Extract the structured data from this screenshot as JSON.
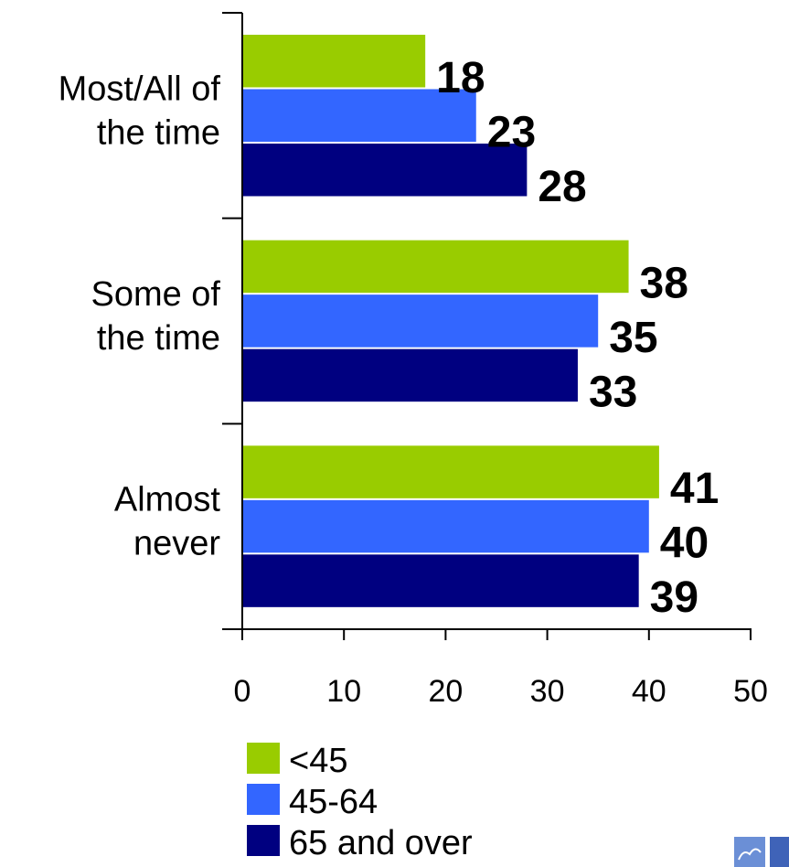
{
  "chart_data": {
    "type": "bar",
    "orientation": "horizontal",
    "categories": [
      "Most/All of the time",
      "Some of the time",
      "Almost never"
    ],
    "category_lines": [
      [
        "Most/All of",
        "the time"
      ],
      [
        "Some of",
        "the time"
      ],
      [
        "Almost",
        "never"
      ]
    ],
    "series": [
      {
        "name": "<45",
        "color": "#99cc00",
        "values": [
          18,
          38,
          41
        ]
      },
      {
        "name": "45-64",
        "color": "#3366ff",
        "values": [
          23,
          35,
          40
        ]
      },
      {
        "name": "65 and over",
        "color": "#000080",
        "values": [
          28,
          33,
          39
        ]
      }
    ],
    "xlim": [
      0,
      50
    ],
    "xticks": [
      "0",
      "10",
      "20",
      "30",
      "40",
      "50"
    ],
    "grid": false,
    "legend_position": "bottom",
    "data_labels": true
  }
}
